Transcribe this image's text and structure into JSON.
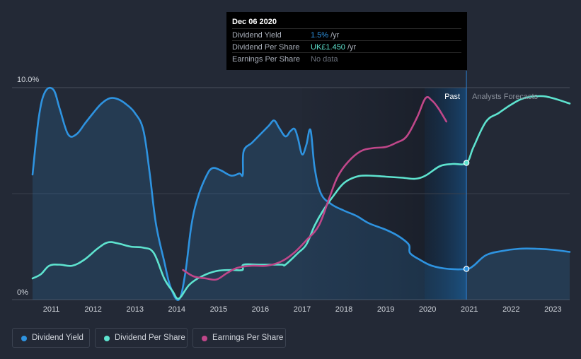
{
  "chart_data": {
    "type": "line",
    "y_axis": {
      "ylim": [
        0,
        10
      ],
      "tick_labels": [
        {
          "value": 10,
          "label": "10.0%"
        },
        {
          "value": 0,
          "label": "0%"
        }
      ]
    },
    "x_axis": {
      "xlim": [
        2010.55,
        2023.4
      ],
      "ticks": [
        2011,
        2012,
        2013,
        2014,
        2015,
        2016,
        2017,
        2018,
        2019,
        2020,
        2021,
        2022,
        2023
      ]
    },
    "past_label": "Past",
    "forecast_label": "Analysts Forecasts",
    "divider_x": 2020.93,
    "series": [
      {
        "name": "Dividend Yield",
        "color": "#2e93e0",
        "fill": true,
        "points": [
          [
            2010.55,
            5.9
          ],
          [
            2010.7,
            8.6
          ],
          [
            2010.85,
            9.8
          ],
          [
            2011.05,
            9.9
          ],
          [
            2011.2,
            9.0
          ],
          [
            2011.4,
            7.8
          ],
          [
            2011.6,
            7.8
          ],
          [
            2011.8,
            8.3
          ],
          [
            2012.0,
            8.8
          ],
          [
            2012.2,
            9.25
          ],
          [
            2012.4,
            9.5
          ],
          [
            2012.6,
            9.45
          ],
          [
            2012.8,
            9.2
          ],
          [
            2013.0,
            8.8
          ],
          [
            2013.2,
            8.0
          ],
          [
            2013.35,
            6.0
          ],
          [
            2013.5,
            3.6
          ],
          [
            2013.7,
            1.8
          ],
          [
            2013.85,
            0.6
          ],
          [
            2014.05,
            0.0
          ],
          [
            2014.2,
            1.2
          ],
          [
            2014.35,
            3.5
          ],
          [
            2014.5,
            4.8
          ],
          [
            2014.7,
            5.8
          ],
          [
            2014.85,
            6.2
          ],
          [
            2015.05,
            6.1
          ],
          [
            2015.3,
            5.85
          ],
          [
            2015.5,
            5.95
          ],
          [
            2015.58,
            5.9
          ],
          [
            2015.6,
            7.0
          ],
          [
            2015.8,
            7.4
          ],
          [
            2016.0,
            7.8
          ],
          [
            2016.2,
            8.2
          ],
          [
            2016.33,
            8.45
          ],
          [
            2016.45,
            8.1
          ],
          [
            2016.6,
            7.7
          ],
          [
            2016.72,
            7.95
          ],
          [
            2016.82,
            8.05
          ],
          [
            2016.9,
            7.6
          ],
          [
            2017.0,
            6.85
          ],
          [
            2017.1,
            7.3
          ],
          [
            2017.2,
            8.0
          ],
          [
            2017.3,
            6.2
          ],
          [
            2017.45,
            5.0
          ],
          [
            2017.7,
            4.5
          ],
          [
            2018.0,
            4.2
          ],
          [
            2018.3,
            3.95
          ],
          [
            2018.6,
            3.6
          ],
          [
            2019.0,
            3.3
          ],
          [
            2019.3,
            3.0
          ],
          [
            2019.55,
            2.6
          ],
          [
            2019.58,
            2.2
          ],
          [
            2019.8,
            1.9
          ],
          [
            2020.1,
            1.6
          ],
          [
            2020.5,
            1.45
          ],
          [
            2020.93,
            1.45
          ],
          [
            2021.1,
            1.6
          ],
          [
            2021.4,
            2.1
          ],
          [
            2021.8,
            2.3
          ],
          [
            2022.2,
            2.4
          ],
          [
            2022.6,
            2.4
          ],
          [
            2023.0,
            2.35
          ],
          [
            2023.4,
            2.25
          ]
        ]
      },
      {
        "name": "Dividend Per Share",
        "color": "#5ee3cf",
        "fill": false,
        "points": [
          [
            2010.55,
            1.0
          ],
          [
            2010.75,
            1.2
          ],
          [
            2010.95,
            1.6
          ],
          [
            2011.2,
            1.65
          ],
          [
            2011.5,
            1.6
          ],
          [
            2011.8,
            1.9
          ],
          [
            2012.1,
            2.4
          ],
          [
            2012.35,
            2.7
          ],
          [
            2012.6,
            2.65
          ],
          [
            2012.9,
            2.5
          ],
          [
            2013.2,
            2.45
          ],
          [
            2013.45,
            2.2
          ],
          [
            2013.7,
            1.0
          ],
          [
            2013.9,
            0.4
          ],
          [
            2014.05,
            0.05
          ],
          [
            2014.3,
            0.7
          ],
          [
            2014.6,
            1.1
          ],
          [
            2014.95,
            1.35
          ],
          [
            2015.3,
            1.4
          ],
          [
            2015.57,
            1.4
          ],
          [
            2015.6,
            1.65
          ],
          [
            2016.0,
            1.65
          ],
          [
            2016.5,
            1.65
          ],
          [
            2016.6,
            1.65
          ],
          [
            2016.9,
            2.2
          ],
          [
            2017.1,
            2.6
          ],
          [
            2017.3,
            3.5
          ],
          [
            2017.5,
            4.2
          ],
          [
            2017.75,
            4.9
          ],
          [
            2018.0,
            5.5
          ],
          [
            2018.3,
            5.8
          ],
          [
            2018.6,
            5.85
          ],
          [
            2019.0,
            5.8
          ],
          [
            2019.4,
            5.75
          ],
          [
            2019.7,
            5.7
          ],
          [
            2019.95,
            5.85
          ],
          [
            2020.3,
            6.3
          ],
          [
            2020.6,
            6.4
          ],
          [
            2020.93,
            6.45
          ],
          [
            2021.1,
            7.2
          ],
          [
            2021.4,
            8.4
          ],
          [
            2021.7,
            8.8
          ],
          [
            2022.0,
            9.2
          ],
          [
            2022.3,
            9.5
          ],
          [
            2022.7,
            9.6
          ],
          [
            2023.0,
            9.5
          ],
          [
            2023.4,
            9.25
          ]
        ]
      },
      {
        "name": "Earnings Per Share",
        "color": "#c0478a",
        "fill": false,
        "points": [
          [
            2014.15,
            1.4
          ],
          [
            2014.4,
            1.1
          ],
          [
            2014.7,
            1.0
          ],
          [
            2014.95,
            0.95
          ],
          [
            2015.2,
            1.25
          ],
          [
            2015.45,
            1.5
          ],
          [
            2015.8,
            1.6
          ],
          [
            2016.15,
            1.6
          ],
          [
            2016.5,
            1.8
          ],
          [
            2016.8,
            2.2
          ],
          [
            2017.1,
            2.8
          ],
          [
            2017.4,
            3.5
          ],
          [
            2017.65,
            4.8
          ],
          [
            2017.85,
            5.8
          ],
          [
            2018.1,
            6.5
          ],
          [
            2018.4,
            7.0
          ],
          [
            2018.7,
            7.15
          ],
          [
            2019.0,
            7.2
          ],
          [
            2019.25,
            7.4
          ],
          [
            2019.5,
            7.7
          ],
          [
            2019.75,
            8.6
          ],
          [
            2019.95,
            9.5
          ],
          [
            2020.1,
            9.4
          ],
          [
            2020.25,
            9.05
          ],
          [
            2020.45,
            8.4
          ]
        ]
      }
    ],
    "markers": [
      {
        "series": "Dividend Per Share",
        "x": 2020.93,
        "y": 6.45
      },
      {
        "series": "Dividend Yield",
        "x": 2020.93,
        "y": 1.45
      }
    ]
  },
  "tooltip": {
    "date": "Dec 06 2020",
    "rows": [
      {
        "label": "Dividend Yield",
        "value": "1.5%",
        "unit": "/yr",
        "color": "#2e93e0"
      },
      {
        "label": "Dividend Per Share",
        "value": "UK£1.450",
        "unit": "/yr",
        "color": "#5ee3cf"
      },
      {
        "label": "Earnings Per Share",
        "value": "No data",
        "unit": "",
        "color": "#6b717c"
      }
    ]
  },
  "legend": [
    {
      "label": "Dividend Yield",
      "color": "#2e93e0"
    },
    {
      "label": "Dividend Per Share",
      "color": "#5ee3cf"
    },
    {
      "label": "Earnings Per Share",
      "color": "#c0478a"
    }
  ]
}
